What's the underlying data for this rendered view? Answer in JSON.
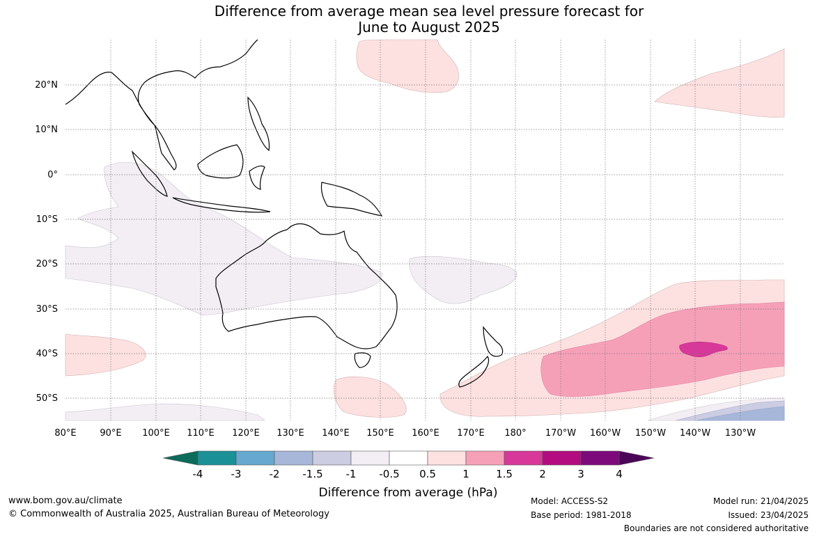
{
  "title": {
    "line1": "Difference from average mean sea level pressure forecast for",
    "line2": "June to August 2025"
  },
  "map": {
    "lat_labels": [
      "20°N",
      "10°N",
      "0°",
      "10°S",
      "20°S",
      "30°S",
      "40°S",
      "50°S"
    ],
    "lon_labels": [
      "80°E",
      "90°E",
      "100°E",
      "110°E",
      "120°E",
      "130°E",
      "140°E",
      "150°E",
      "160°E",
      "170°E",
      "180°",
      "170°W",
      "160°W",
      "150°W",
      "140°W",
      "130°W"
    ]
  },
  "legend": {
    "title": "Difference from average (hPa)",
    "tick_labels": [
      "-4",
      "-3",
      "-2",
      "-1.5",
      "-1",
      "-0.5",
      "0.5",
      "1",
      "1.5",
      "2",
      "3",
      "4"
    ],
    "colors": [
      "#0c6b5a",
      "#1b9097",
      "#66a8d0",
      "#a6b7da",
      "#cccce2",
      "#f2eef4",
      "#ffffff",
      "#fde0e0",
      "#f6a0b8",
      "#d8389a",
      "#b30c80",
      "#7c0a7b",
      "#4c0657"
    ]
  },
  "footer": {
    "url": "www.bom.gov.au/climate",
    "copyright": "© Commonwealth of Australia 2025, Australian Bureau of Meteorology",
    "model": "Model: ACCESS-S2",
    "base_period": "Base period: 1981-2018",
    "model_run": "Model run: 21/04/2025",
    "issued": "Issued: 23/04/2025",
    "disclaimer": "Boundaries are not considered authoritative"
  }
}
